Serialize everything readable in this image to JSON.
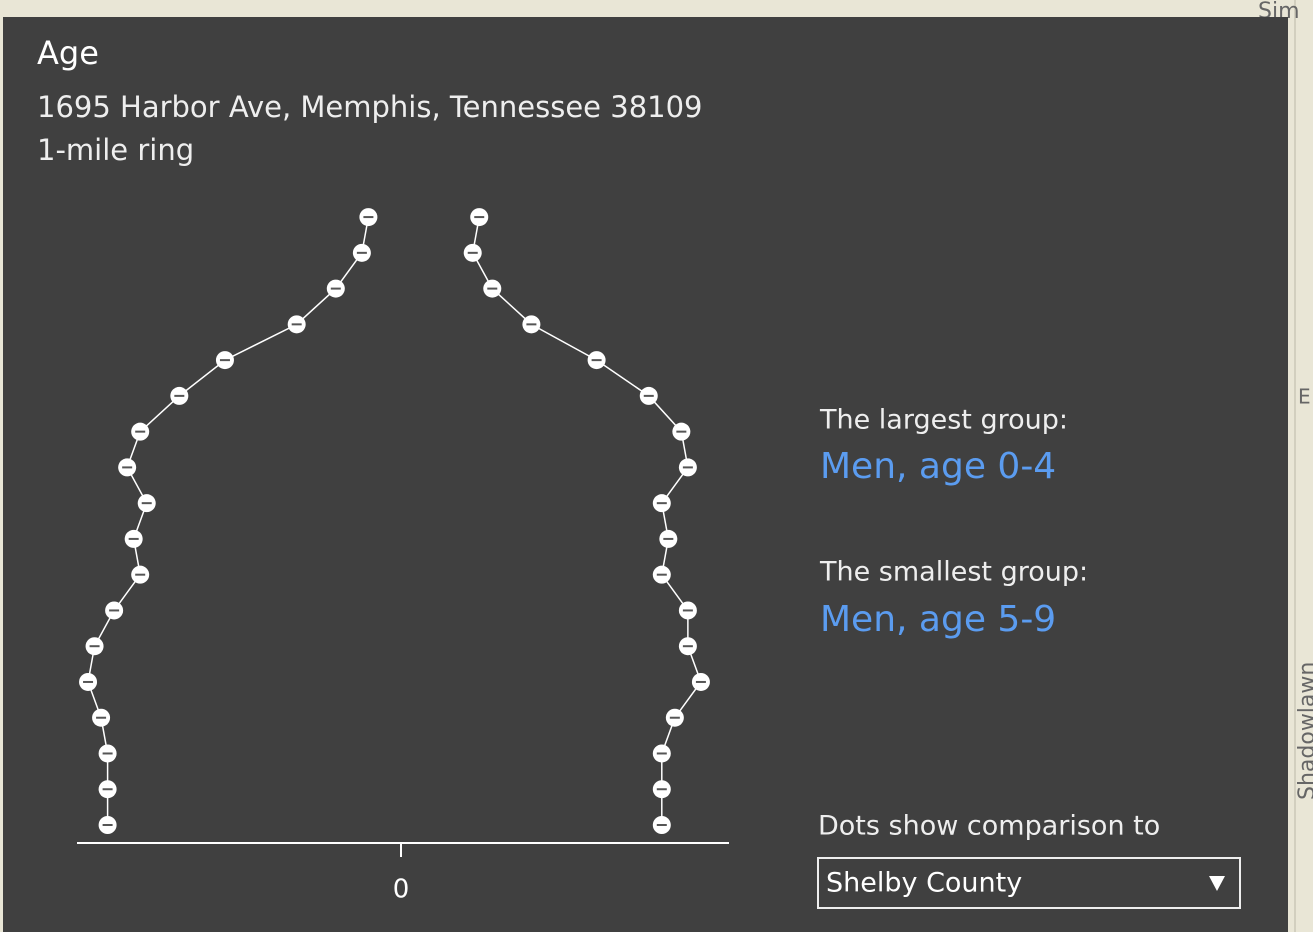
{
  "map_labels": [
    "Sim",
    "E",
    "Shadowlawn"
  ],
  "popup": {
    "title": "Age",
    "subtitle": "1695 Harbor Ave, Memphis, Tennessee 38109",
    "ring": "1-mile ring",
    "largest_label": "The largest group:",
    "largest_value": "Men, age 0-4",
    "smallest_label": "The smallest group:",
    "smallest_value": "Men, age 5-9",
    "comparison_label": "Dots show comparison to",
    "comparison_select": "Shelby County"
  },
  "chart_data": {
    "type": "dot",
    "series": [
      {
        "color": "#ffffff",
        "values": [
          -4.5,
          -4.5,
          -4.5,
          -4.6,
          -4.8,
          -4.7,
          -4.4,
          -4.0,
          -4.1,
          -3.9,
          -4.2,
          -4.0,
          -3.4,
          -2.7,
          -1.6,
          -1.0,
          -0.6,
          -0.5
        ]
      },
      {
        "color": "#ffffff",
        "values": [
          4.0,
          4.0,
          4.0,
          4.2,
          4.6,
          4.4,
          4.4,
          4.0,
          4.1,
          4.0,
          4.4,
          4.3,
          3.8,
          3.0,
          2.0,
          1.4,
          1.1,
          1.2
        ]
      }
    ],
    "xlim": [
      -5,
      5
    ],
    "xticks": [
      0
    ]
  }
}
